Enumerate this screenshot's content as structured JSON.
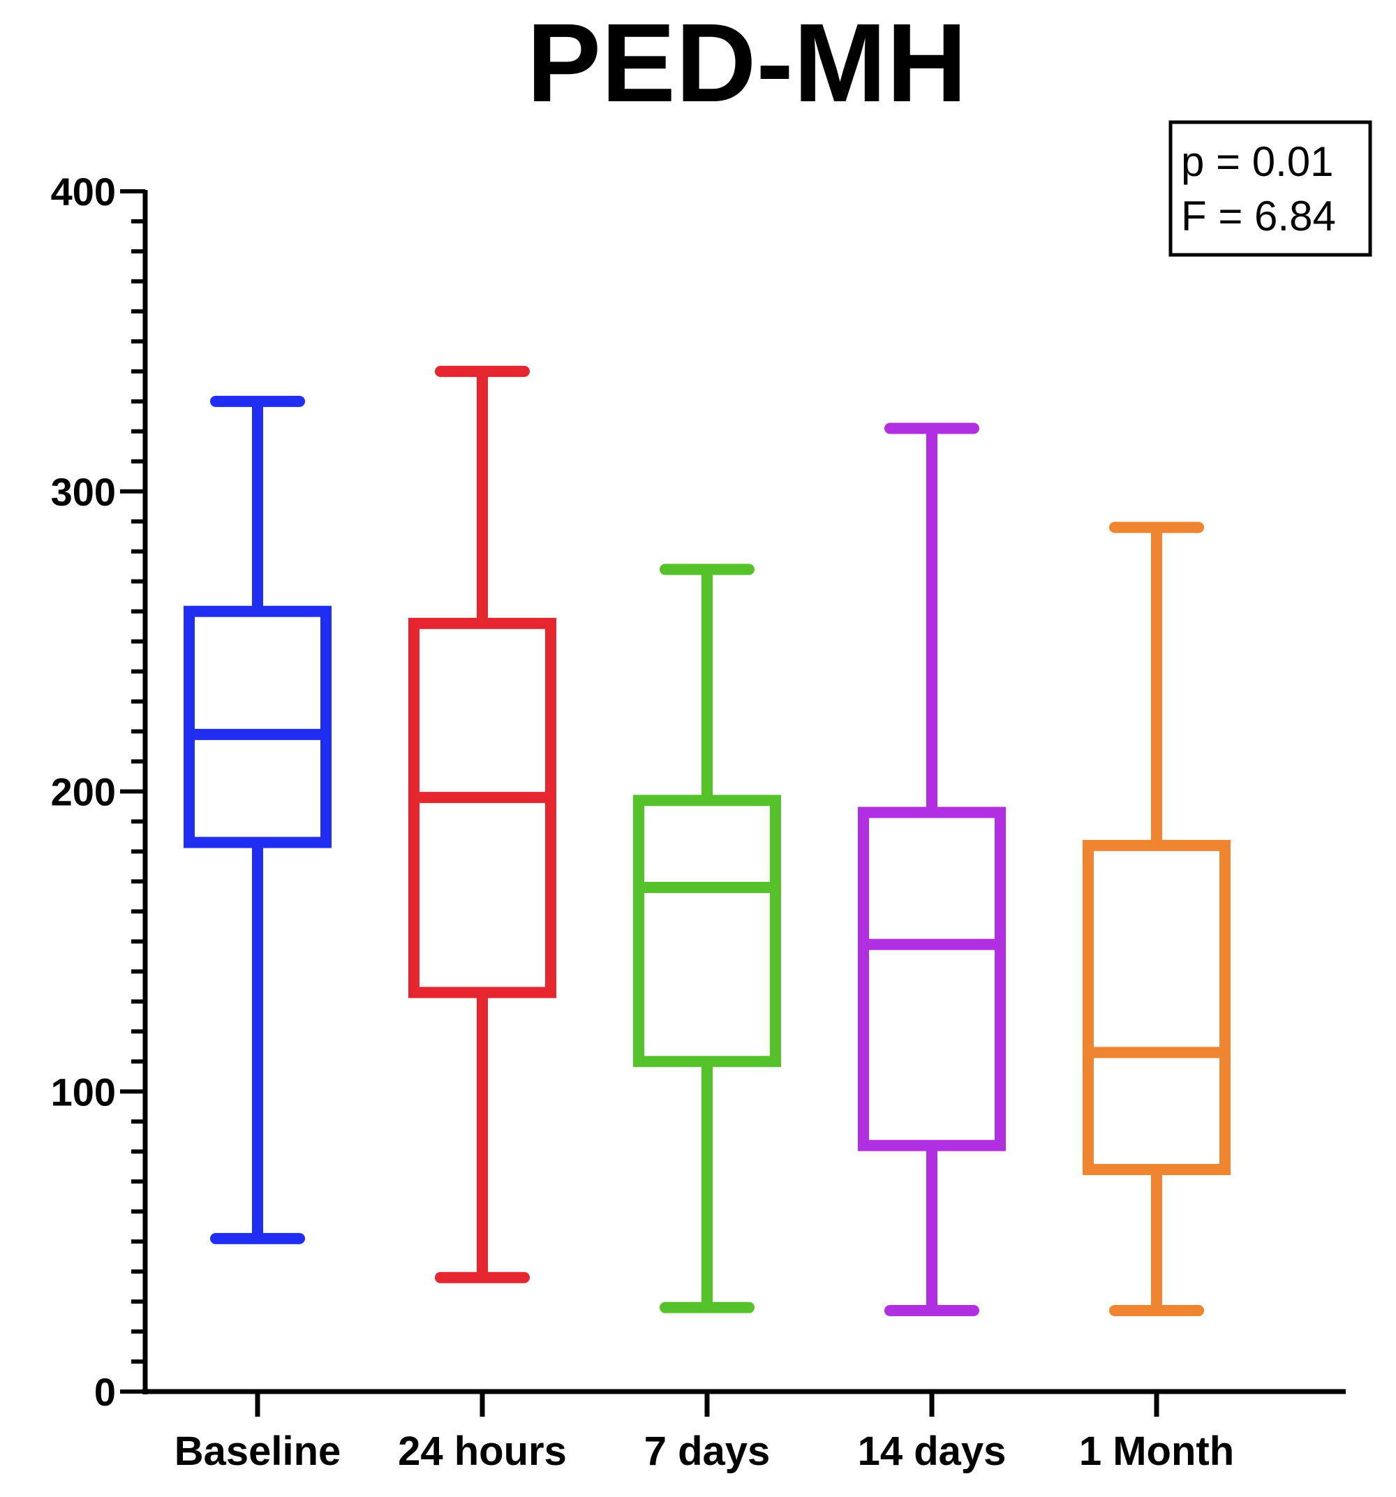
{
  "chart_data": {
    "type": "boxplot",
    "title": "PED-MH",
    "xlabel": "",
    "ylabel": "",
    "ylim": [
      0,
      400
    ],
    "yticks": [
      0,
      100,
      200,
      300,
      400
    ],
    "y_minor_step": 10,
    "grid": false,
    "categories": [
      "Baseline",
      "24 hours",
      "7 days",
      "14 days",
      "1 Month"
    ],
    "boxes": [
      {
        "category": "Baseline",
        "color": "#1f2ef0",
        "whisker_low": 51,
        "q1": 183,
        "median": 219,
        "q3": 260,
        "whisker_high": 330
      },
      {
        "category": "24 hours",
        "color": "#e5262f",
        "whisker_low": 38,
        "q1": 133,
        "median": 198,
        "q3": 256,
        "whisker_high": 340
      },
      {
        "category": "7 days",
        "color": "#55c22b",
        "whisker_low": 28,
        "q1": 110,
        "median": 168,
        "q3": 197,
        "whisker_high": 274
      },
      {
        "category": "14 days",
        "color": "#b02fe0",
        "whisker_low": 27,
        "q1": 82,
        "median": 149,
        "q3": 193,
        "whisker_high": 321
      },
      {
        "category": "1 Month",
        "color": "#ef8530",
        "whisker_low": 27,
        "q1": 74,
        "median": 113,
        "q3": 182,
        "whisker_high": 288
      }
    ],
    "annotation": {
      "lines": [
        "p = 0.01",
        "F = 6.84"
      ],
      "placement": "top-right"
    }
  }
}
